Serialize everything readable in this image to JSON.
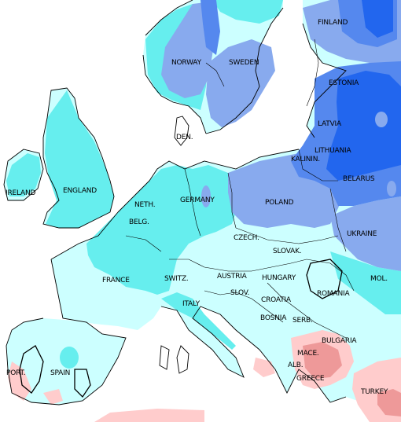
{
  "map": {
    "colors": {
      "sea": "#ffffff",
      "pale_cyan": "#ccffff",
      "cyan": "#66eeee",
      "light_blue": "#88aaee",
      "blue": "#5588ee",
      "deep_blue": "#2266ee",
      "pink": "#ffcccc",
      "rose": "#ee9999",
      "coastline": "#000000"
    },
    "labels": {
      "finland": "FINLAND",
      "norway": "NORWAY",
      "sweden": "SWEDEN",
      "estonia": "ESTONIA",
      "latvia": "LATVIA",
      "lithuania": "LITHUANIA",
      "kalinin": "KALININ.",
      "belarus": "BELARUS",
      "den": "DEN.",
      "ireland": "IRELAND",
      "england": "ENGLAND",
      "neth": "NETH.",
      "germany": "GERMANY",
      "poland": "POLAND",
      "belg": "BELG.",
      "ukraine": "UKRAINE",
      "czech": "CZECH.",
      "slovak": "SLOVAK.",
      "france": "FRANCE",
      "switz": "SWITZ.",
      "austria": "AUSTRIA",
      "hungary": "HUNGARY",
      "mol": "MOL.",
      "slov": "SLOV.",
      "croatia": "CROATIA",
      "romania": "ROMANIA",
      "italy": "ITALY",
      "bosnia": "BOSNIA",
      "serb": "SERB.",
      "bulgaria": "BULGARIA",
      "mace": "MACE.",
      "port": "PORT.",
      "spain": "SPAIN",
      "alb": "ALB.",
      "greece": "GREECE",
      "turkey": "TURKEY"
    }
  }
}
